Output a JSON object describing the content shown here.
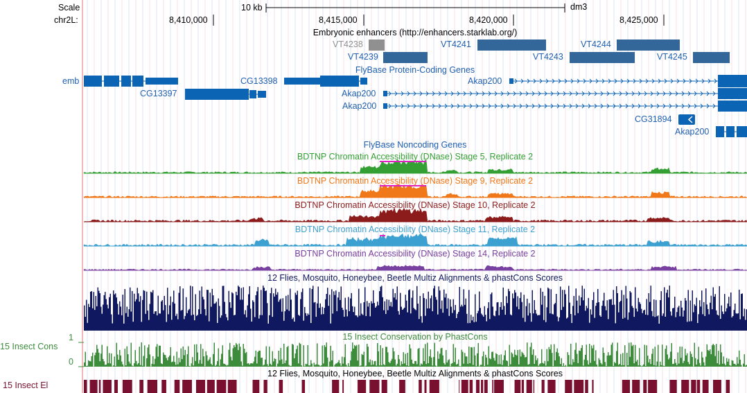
{
  "ruler": {
    "scale_label": "Scale",
    "chrom_label": "chr2L:",
    "scale_bar_text": "10 kb",
    "assembly": "dm3",
    "positions": [
      "8,410,000",
      "8,415,000",
      "8,420,000",
      "8,425,000"
    ]
  },
  "enhancer_track": {
    "title": "Embryonic enhancers (http://enhancers.starklab.org/)",
    "items": [
      {
        "name": "VT4238",
        "color": "#909090"
      },
      {
        "name": "VT4239",
        "color": "#336699"
      },
      {
        "name": "VT4241",
        "color": "#336699"
      },
      {
        "name": "VT4243",
        "color": "#336699"
      },
      {
        "name": "VT4244",
        "color": "#336699"
      },
      {
        "name": "VT4245",
        "color": "#336699"
      }
    ]
  },
  "genes_track": {
    "title": "FlyBase Protein-Coding Genes",
    "color": "#0c64b4",
    "gene_labels": [
      "emb",
      "CG13397",
      "CG13398",
      "Akap200",
      "Akap200",
      "Akap200",
      "CG31894",
      "Akap200"
    ]
  },
  "noncoding_track": {
    "title": "FlyBase Noncoding Genes"
  },
  "dnase_tracks": [
    {
      "title": "BDTNP Chromatin Accessibility (DNase) Stage 5, Replicate 2",
      "color": "#34a034"
    },
    {
      "title": "BDTNP Chromatin Accessibility (DNase) Stage 9, Replicate 2",
      "color": "#f07818"
    },
    {
      "title": "BDTNP Chromatin Accessibility (DNase) Stage 10, Replicate 2",
      "color": "#8c1c1c"
    },
    {
      "title": "BDTNP Chromatin Accessibility (DNase) Stage 11, Replicate 2",
      "color": "#3ca0d0"
    },
    {
      "title": "BDTNP Chromatin Accessibility (DNase) Stage 14, Replicate 2",
      "color": "#7840a0"
    }
  ],
  "multiz_track": {
    "title": "12 Flies, Mosquito, Honeybee, Beetle Multiz Alignments & phastCons Scores",
    "color": "#101860"
  },
  "conservation_track": {
    "title": "15 Insect Conservation by PhastCons",
    "side_label": "15 Insect Cons",
    "y_max": "1",
    "y_min": "0",
    "color": "#3c8c3c"
  },
  "elements_track": {
    "title": "12 Flies, Mosquito, Honeybee, Beetle Multiz Alignments & phastCons Scores",
    "side_label": "15 Insect El",
    "color": "#7a1030"
  }
}
